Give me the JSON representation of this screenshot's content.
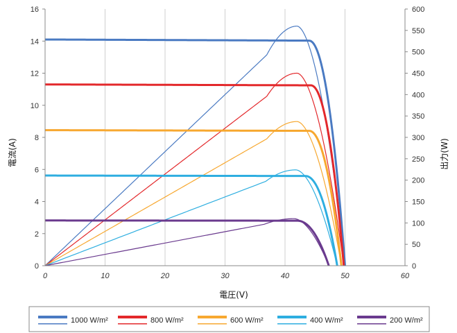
{
  "chart_data": {
    "type": "line",
    "xlabel": "電圧(V)",
    "ylabel_left": "電流(A)",
    "ylabel_right": "出力(W)",
    "xlim": [
      0,
      60
    ],
    "ylim_left": [
      0,
      16
    ],
    "ylim_right": [
      0,
      600
    ],
    "x_ticks": [
      "0",
      "10",
      "20",
      "30",
      "40",
      "50",
      "60"
    ],
    "y_left_ticks": [
      "0",
      "2",
      "4",
      "6",
      "8",
      "10",
      "12",
      "14",
      "16"
    ],
    "y_right_ticks": [
      "0",
      "50",
      "100",
      "150",
      "200",
      "250",
      "300",
      "350",
      "400",
      "450",
      "500",
      "550",
      "600"
    ],
    "grid": "vertical",
    "legend_position": "bottom",
    "series": [
      {
        "name": "1000 W/m²",
        "color": "#4a7ac2",
        "isc": 14.1,
        "voc": 50.0,
        "knee": 44.0,
        "pmax_x": 42,
        "pmax": 560
      },
      {
        "name": "800 W/m²",
        "color": "#e3282b",
        "isc": 11.3,
        "voc": 49.8,
        "knee": 44.3,
        "pmax_x": 42,
        "pmax": 450
      },
      {
        "name": "600 W/m²",
        "color": "#f7a830",
        "isc": 8.45,
        "voc": 49.4,
        "knee": 44.0,
        "pmax_x": 42,
        "pmax": 337
      },
      {
        "name": "400 W/m²",
        "color": "#2eaee0",
        "isc": 5.62,
        "voc": 48.7,
        "knee": 43.4,
        "pmax_x": 41.8,
        "pmax": 224
      },
      {
        "name": "200 W/m²",
        "color": "#6a3a8e",
        "isc": 2.82,
        "voc": 47.3,
        "knee": 42.0,
        "pmax_x": 41.5,
        "pmax": 110
      }
    ]
  }
}
